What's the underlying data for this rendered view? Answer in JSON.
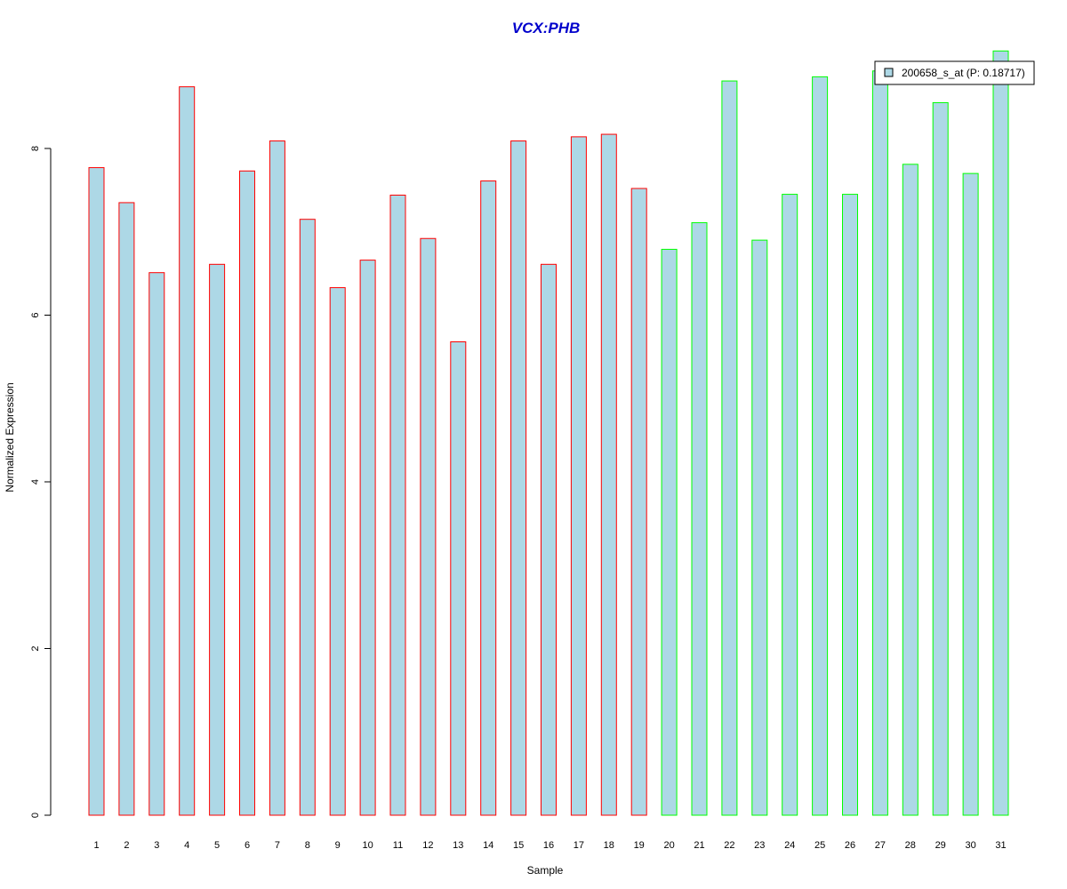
{
  "chart_data": {
    "type": "bar",
    "title": "VCX:PHB",
    "xlabel": "Sample",
    "ylabel": "Normalized Expression",
    "ylim": [
      0,
      9.2
    ],
    "yticks": [
      0,
      2,
      4,
      6,
      8
    ],
    "categories": [
      "1",
      "2",
      "3",
      "4",
      "5",
      "6",
      "7",
      "8",
      "9",
      "10",
      "11",
      "12",
      "13",
      "14",
      "15",
      "16",
      "17",
      "18",
      "19",
      "20",
      "21",
      "22",
      "23",
      "24",
      "25",
      "26",
      "27",
      "28",
      "29",
      "30",
      "31"
    ],
    "series": [
      {
        "name": "200658_s_at (P: 0.18717)",
        "values": [
          7.77,
          7.35,
          6.51,
          8.74,
          6.61,
          7.73,
          8.09,
          7.15,
          6.33,
          6.66,
          7.44,
          6.92,
          5.68,
          7.61,
          8.09,
          6.61,
          8.14,
          8.17,
          7.52,
          6.79,
          7.11,
          8.81,
          6.9,
          7.45,
          8.86,
          7.45,
          8.93,
          7.81,
          8.55,
          7.7,
          9.17
        ],
        "fill": "#add8e6"
      }
    ],
    "bar_border_colors": [
      "#ff0000",
      "#ff0000",
      "#ff0000",
      "#ff0000",
      "#ff0000",
      "#ff0000",
      "#ff0000",
      "#ff0000",
      "#ff0000",
      "#ff0000",
      "#ff0000",
      "#ff0000",
      "#ff0000",
      "#ff0000",
      "#ff0000",
      "#ff0000",
      "#ff0000",
      "#ff0000",
      "#ff0000",
      "#00ff00",
      "#00ff00",
      "#00ff00",
      "#00ff00",
      "#00ff00",
      "#00ff00",
      "#00ff00",
      "#00ff00",
      "#00ff00",
      "#00ff00",
      "#00ff00",
      "#00ff00"
    ],
    "legend": {
      "position": "top-right",
      "label": "200658_s_at (P: 0.18717)",
      "swatch": "#add8e6"
    },
    "grid": false
  }
}
